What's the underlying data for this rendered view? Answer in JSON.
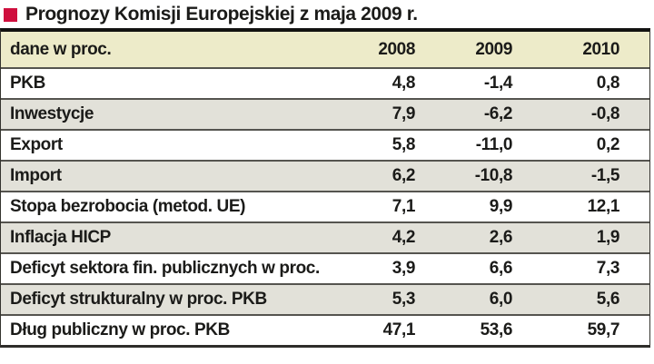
{
  "title": {
    "text": "Prognozy Komisji Europejskiej z maja 2009 r.",
    "bullet_color": "#cf0f3e"
  },
  "table": {
    "header": {
      "label": "dane w proc.",
      "years": [
        "2008",
        "2009",
        "2010"
      ]
    },
    "rows": [
      {
        "label": "PKB",
        "values": [
          "4,8",
          "-1,4",
          "0,8"
        ]
      },
      {
        "label": "Inwestycje",
        "values": [
          "7,9",
          "-6,2",
          "-0,8"
        ]
      },
      {
        "label": "Export",
        "values": [
          "5,8",
          "-11,0",
          "0,2"
        ]
      },
      {
        "label": "Import",
        "values": [
          "6,2",
          "-10,8",
          "-1,5"
        ]
      },
      {
        "label": "Stopa bezrobocia (metod. UE)",
        "values": [
          "7,1",
          "9,9",
          "12,1"
        ]
      },
      {
        "label": "Inflacja HICP",
        "values": [
          "4,2",
          "2,6",
          "1,9"
        ]
      },
      {
        "label": "Deficyt sektora fin. publicznych w proc. PKB",
        "values": [
          "3,9",
          "6,6",
          "7,3"
        ]
      },
      {
        "label": "Deficyt strukturalny w proc. PKB",
        "values": [
          "5,3",
          "6,0",
          "5,6"
        ]
      },
      {
        "label": "Dług publiczny w proc. PKB",
        "values": [
          "47,1",
          "53,6",
          "59,7"
        ]
      }
    ]
  },
  "colors": {
    "bullet": "#cf0f3e",
    "header_bg": "#edebc9",
    "stripe_bg": "#e2e1d9",
    "row_bg": "#ffffff",
    "rule": "#55544f",
    "top_border": "#121211",
    "text": "#1b1b19"
  },
  "chart_data": {
    "type": "table",
    "title": "Prognozy Komisji Europejskiej z maja 2009 r.",
    "unit_note": "dane w proc.",
    "columns": [
      "2008",
      "2009",
      "2010"
    ],
    "rows": [
      {
        "label": "PKB",
        "values": [
          4.8,
          -1.4,
          0.8
        ]
      },
      {
        "label": "Inwestycje",
        "values": [
          7.9,
          -6.2,
          -0.8
        ]
      },
      {
        "label": "Export",
        "values": [
          5.8,
          -11.0,
          0.2
        ]
      },
      {
        "label": "Import",
        "values": [
          6.2,
          -10.8,
          -1.5
        ]
      },
      {
        "label": "Stopa bezrobocia (metod. UE)",
        "values": [
          7.1,
          9.9,
          12.1
        ]
      },
      {
        "label": "Inflacja HICP",
        "values": [
          4.2,
          2.6,
          1.9
        ]
      },
      {
        "label": "Deficyt sektora fin. publicznych w proc. PKB",
        "values": [
          3.9,
          6.6,
          7.3
        ]
      },
      {
        "label": "Deficyt strukturalny w proc. PKB",
        "values": [
          5.3,
          6.0,
          5.6
        ]
      },
      {
        "label": "Dług publiczny w proc. PKB",
        "values": [
          47.1,
          53.6,
          59.7
        ]
      }
    ]
  }
}
